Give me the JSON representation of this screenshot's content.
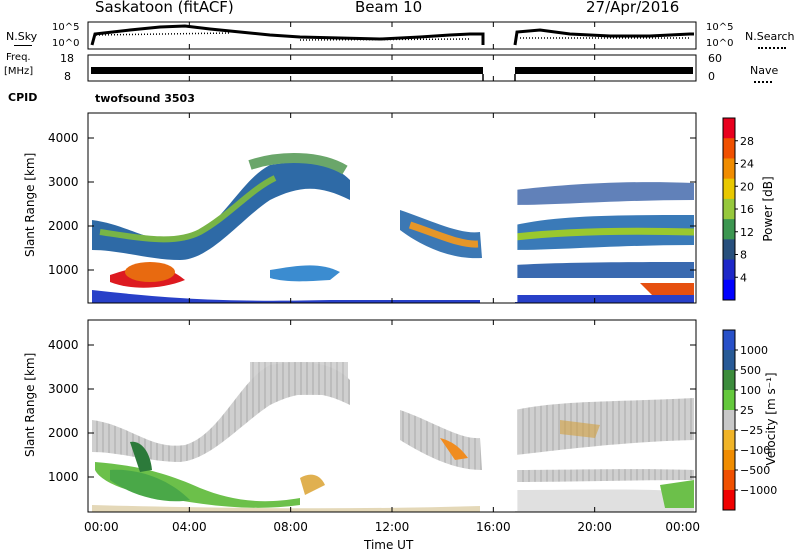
{
  "header": {
    "title": "Saskatoon (fitACF)",
    "beam": "Beam 10",
    "date": "27/Apr/2016"
  },
  "top_panels": {
    "nsky_label": "N.Sky",
    "nsearch_label": "N.Search",
    "noise_ticks": [
      "10^5",
      "10^0"
    ],
    "freq_label_1": "Freq.",
    "freq_label_2": "[MHz]",
    "freq_ticks": [
      "18",
      "8"
    ],
    "nave_label": "Nave",
    "nave_ticks": [
      "60",
      "0"
    ],
    "cpid_label": "CPID",
    "cpid_value": "twofsound 3503"
  },
  "chart_data": [
    {
      "type": "heatmap",
      "name": "power",
      "ylabel": "Slant Range [km]",
      "ylim": [
        200,
        4500
      ],
      "yticks": [
        1000,
        2000,
        3000,
        4000
      ],
      "xlim_hours": [
        0,
        24
      ],
      "data_gap_hours": [
        15.9,
        16.95
      ],
      "colorbar": {
        "label": "Power [dB]",
        "ticks": [
          "28",
          "24",
          "20",
          "16",
          "12",
          "8",
          "4"
        ],
        "colors": [
          "#e8001e",
          "#f05000",
          "#f08c00",
          "#e8c800",
          "#96c83c",
          "#3c9650",
          "#28507d",
          "#1e28c8",
          "#0000ff"
        ]
      }
    },
    {
      "type": "heatmap",
      "name": "velocity",
      "ylabel": "Slant Range [km]",
      "ylim": [
        200,
        4500
      ],
      "yticks": [
        1000,
        2000,
        3000,
        4000
      ],
      "xlim_hours": [
        0,
        24
      ],
      "data_gap_hours": [
        15.9,
        16.95
      ],
      "colorbar": {
        "label": "Velocity [m s⁻¹]",
        "ticks": [
          "1000",
          "500",
          "100",
          "25",
          "−25",
          "−100",
          "−500",
          "−1000"
        ],
        "colors": [
          "#2850c8",
          "#285a96",
          "#3c8c3c",
          "#64c83c",
          "#c8c8c8",
          "#f0b428",
          "#f08c00",
          "#f05000",
          "#f00000"
        ]
      }
    }
  ],
  "x_axis": {
    "ticks": [
      "00:00",
      "04:00",
      "08:00",
      "12:00",
      "16:00",
      "20:00",
      "00:00"
    ],
    "label": "Time UT"
  }
}
